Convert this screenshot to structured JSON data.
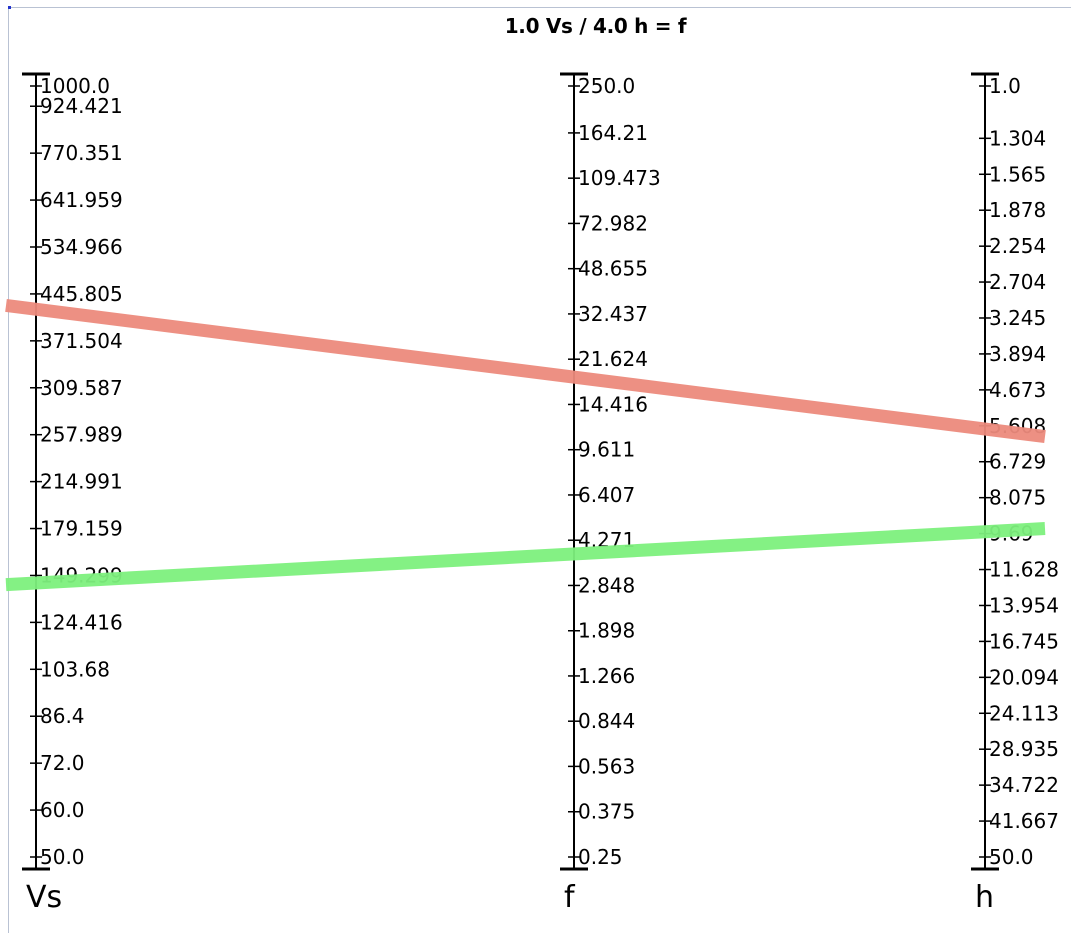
{
  "title": "1.0 Vs / 4.0 h = f",
  "scales": [
    {
      "key": "Vs",
      "name": "Vs",
      "log": true,
      "range": [
        50.0,
        1000.0
      ],
      "direction": "decreasing-downward",
      "tick_labels": [
        "1000.0",
        "924.421",
        "770.351",
        "641.959",
        "534.966",
        "445.805",
        "371.504",
        "309.587",
        "257.989",
        "214.991",
        "179.159",
        "149.299",
        "124.416",
        "103.68",
        "86.4",
        "72.0",
        "60.0",
        "50.0"
      ]
    },
    {
      "key": "f",
      "name": "f",
      "log": true,
      "range": [
        0.25,
        250.0
      ],
      "direction": "decreasing-downward",
      "tick_labels": [
        "250.0",
        "164.21",
        "109.473",
        "72.982",
        "48.655",
        "32.437",
        "21.624",
        "14.416",
        "9.611",
        "6.407",
        "4.271",
        "2.848",
        "1.898",
        "1.266",
        "0.844",
        "0.563",
        "0.375",
        "0.25"
      ]
    },
    {
      "key": "h",
      "name": "h",
      "log": true,
      "range": [
        1.0,
        50.0
      ],
      "direction": "increasing-downward",
      "tick_labels": [
        "1.0",
        "1.304",
        "1.565",
        "1.878",
        "2.254",
        "2.704",
        "3.245",
        "3.894",
        "4.673",
        "5.608",
        "6.729",
        "8.075",
        "9.69",
        "11.628",
        "13.954",
        "16.745",
        "20.094",
        "24.113",
        "28.935",
        "34.722",
        "41.667",
        "50.0"
      ]
    }
  ],
  "isopleths": [
    {
      "name": "red-isopleth",
      "color": "#ec8a7c",
      "Vs": 420,
      "f": 18.5,
      "h": 5.7
    },
    {
      "name": "green-isopleth",
      "color": "#7df07d",
      "Vs": 145,
      "f": 3.8,
      "h": 9.6
    }
  ],
  "colors": {
    "axis": "#000000",
    "text": "#000000",
    "frame": "#b9c2d3"
  }
}
